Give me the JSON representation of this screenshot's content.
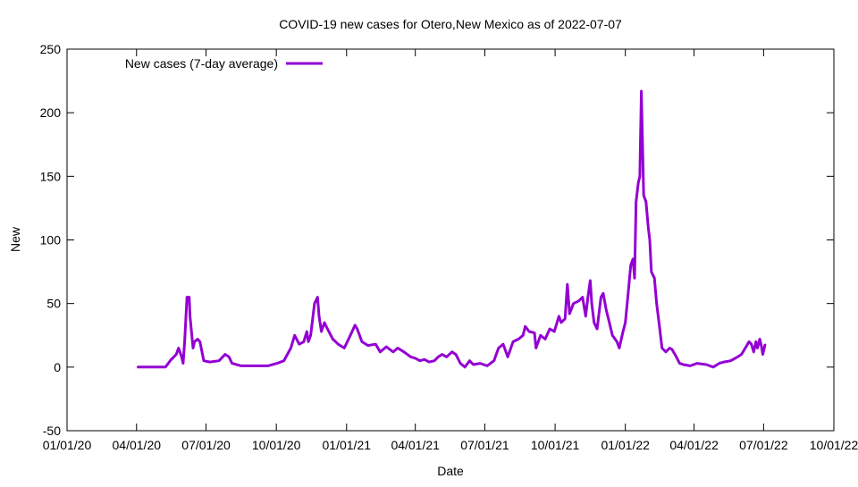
{
  "chart_data": {
    "type": "line",
    "title": "COVID-19 new cases for Otero,New Mexico as of 2022-07-07",
    "xlabel": "Date",
    "ylabel": "New",
    "x_unit": "days since 2020-01-01",
    "xlim": [
      0,
      1004
    ],
    "ylim": [
      -50,
      250
    ],
    "yticks": [
      -50,
      0,
      50,
      100,
      150,
      200,
      250
    ],
    "xticks": [
      {
        "day": 0,
        "label": "01/01/20"
      },
      {
        "day": 91,
        "label": "04/01/20"
      },
      {
        "day": 182,
        "label": "07/01/20"
      },
      {
        "day": 274,
        "label": "10/01/20"
      },
      {
        "day": 366,
        "label": "01/01/21"
      },
      {
        "day": 456,
        "label": "04/01/21"
      },
      {
        "day": 547,
        "label": "07/01/21"
      },
      {
        "day": 639,
        "label": "10/01/21"
      },
      {
        "day": 731,
        "label": "01/01/22"
      },
      {
        "day": 821,
        "label": "04/01/22"
      },
      {
        "day": 912,
        "label": "07/01/22"
      },
      {
        "day": 1004,
        "label": "10/01/22"
      }
    ],
    "grid": false,
    "legend_position": "top-left",
    "series": [
      {
        "name": "New cases (7-day average)",
        "color": "#9400d3",
        "x": [
          92,
          129,
          135,
          143,
          146,
          150,
          152,
          154,
          157,
          160,
          161,
          165,
          167,
          171,
          174,
          179,
          187,
          199,
          207,
          212,
          216,
          228,
          252,
          263,
          275,
          284,
          293,
          298,
          304,
          310,
          314,
          316,
          319,
          324,
          328,
          330,
          333,
          337,
          341,
          348,
          355,
          363,
          371,
          377,
          380,
          386,
          394,
          404,
          410,
          418,
          427,
          433,
          441,
          450,
          456,
          462,
          468,
          474,
          481,
          486,
          491,
          497,
          504,
          509,
          515,
          521,
          527,
          532,
          541,
          550,
          559,
          565,
          571,
          577,
          584,
          591,
          597,
          600,
          605,
          612,
          614,
          620,
          626,
          632,
          638,
          644,
          647,
          652,
          655,
          658,
          663,
          670,
          675,
          679,
          682,
          685,
          687,
          690,
          694,
          699,
          702,
          706,
          710,
          714,
          720,
          723,
          728,
          731,
          735,
          738,
          741,
          743,
          745,
          748,
          750,
          752,
          755,
          758,
          761,
          763,
          765,
          769,
          772,
          776,
          779,
          784,
          789,
          792,
          796,
          802,
          807,
          816,
          825,
          837,
          846,
          854,
          860,
          869,
          878,
          883,
          888,
          893,
          896,
          899,
          902,
          904,
          907,
          909,
          911,
          914
        ],
        "y": [
          0,
          0,
          5,
          10,
          15,
          8,
          3,
          20,
          55,
          55,
          40,
          15,
          20,
          22,
          20,
          5,
          4,
          5,
          10,
          8,
          3,
          1,
          1,
          1,
          3,
          5,
          15,
          25,
          18,
          20,
          28,
          20,
          25,
          50,
          55,
          40,
          28,
          35,
          30,
          22,
          18,
          15,
          25,
          33,
          30,
          20,
          17,
          18,
          12,
          16,
          12,
          15,
          12,
          8,
          7,
          5,
          6,
          4,
          5,
          8,
          10,
          8,
          12,
          10,
          3,
          0,
          5,
          2,
          3,
          1,
          5,
          15,
          18,
          8,
          20,
          22,
          25,
          32,
          28,
          27,
          15,
          25,
          22,
          30,
          28,
          40,
          35,
          38,
          65,
          42,
          50,
          52,
          55,
          40,
          55,
          68,
          50,
          35,
          30,
          55,
          58,
          45,
          35,
          25,
          20,
          15,
          28,
          35,
          60,
          80,
          85,
          70,
          130,
          145,
          150,
          217,
          135,
          130,
          110,
          100,
          75,
          70,
          50,
          30,
          15,
          12,
          15,
          14,
          10,
          3,
          2,
          1,
          3,
          2,
          0,
          3,
          4,
          5,
          8,
          10,
          15,
          20,
          18,
          12,
          20,
          15,
          22,
          17,
          10,
          18
        ]
      }
    ]
  }
}
